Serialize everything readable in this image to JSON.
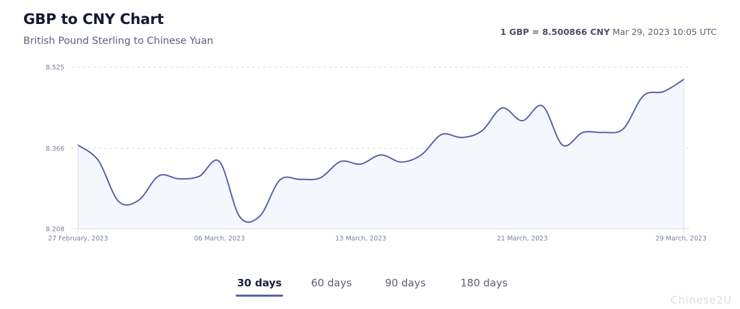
{
  "header": {
    "title": "GBP to CNY Chart",
    "subtitle": "British Pound Sterling to Chinese Yuan",
    "rate_strong": "1 GBP = 8.500866 CNY",
    "rate_time": "Mar 29, 2023 10:05 UTC"
  },
  "colors": {
    "line": "#5b5fa8",
    "fill": "#f5f7fe",
    "grid": "#dcdde3",
    "axis_text": "#7c8194"
  },
  "chart_data": {
    "type": "area",
    "title": "GBP to CNY Chart",
    "subtitle": "British Pound Sterling to Chinese Yuan",
    "xlabel": "",
    "ylabel": "",
    "ylim": [
      8.208,
      8.525
    ],
    "yticks": [
      "8.525",
      "8.366",
      "8.208"
    ],
    "xticks": [
      "27 February, 2023",
      "06 March, 2023",
      "13 March, 2023",
      "21 March, 2023",
      "29 March, 2023"
    ],
    "grid": true,
    "legend": "none",
    "series": [
      {
        "values": [
          8.372,
          8.342,
          8.262,
          8.264,
          8.312,
          8.306,
          8.311,
          8.34,
          8.232,
          8.233,
          8.304,
          8.305,
          8.308,
          8.34,
          8.335,
          8.353,
          8.339,
          8.353,
          8.393,
          8.387,
          8.4,
          8.445,
          8.42,
          8.449,
          8.372,
          8.397,
          8.397,
          8.404,
          8.469,
          8.477,
          8.501
        ]
      }
    ]
  },
  "range_tabs": [
    {
      "label": "30 days",
      "active": true
    },
    {
      "label": "60 days",
      "active": false
    },
    {
      "label": "90 days",
      "active": false
    },
    {
      "label": "180 days",
      "active": false
    }
  ],
  "watermark": "Chinese2U"
}
